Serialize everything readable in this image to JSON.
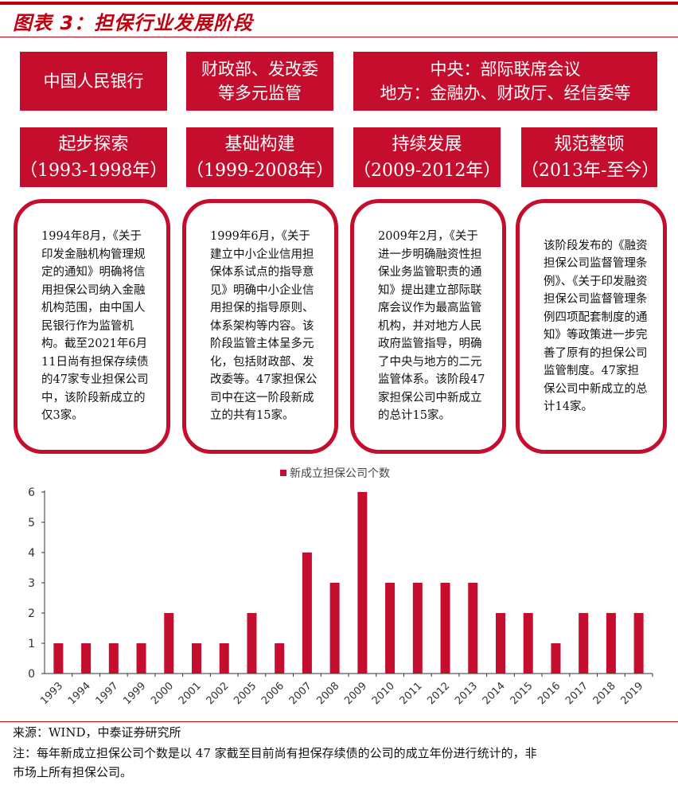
{
  "figure_title": "图表 3：担保行业发展阶段",
  "regulators": [
    {
      "text": "中国人民银行"
    },
    {
      "text": "财政部、发改委\n等多元监管"
    },
    {
      "text": "中央：部际联席会议\n地方：金融办、财政厅、经信委等"
    }
  ],
  "stages": [
    {
      "name": "起步探索",
      "period": "（1993-1998年）",
      "text": "1994年8月，《关于印发金融机构管理规定的通知》明确将信用担保公司纳入金融机构范围，由中国人民银行作为监管机构。截至2021年6月11日尚有担保存续债的47家专业担保公司中，该阶段新成立的仅3家。"
    },
    {
      "name": "基础构建",
      "period": "（1999-2008年）",
      "text": "1999年6月，《关于建立中小企业信用担保体系试点的指导意见》明确中小企业信用担保的指导原则、体系架构等内容。该阶段监管主体呈多元化，包括财政部、发改委等。47家担保公司中在这一阶段新成立的共有15家。"
    },
    {
      "name": "持续发展",
      "period": "（2009-2012年）",
      "text": "2009年2月，《关于进一步明确融资性担保业务监管职责的通知》提出建立部际联席会议作为最高监管机构，并对地方人民政府监管指导，明确了中央与地方的二元监管体系。该阶段47家担保公司中新成立的总计15家。"
    },
    {
      "name": "规范整顿",
      "period": "（2013年-至今）",
      "text": "该阶段发布的《融资担保公司监督管理条例》、《关于印发融资担保公司监督管理条例四项配套制度的通知》等政策进一步完善了原有的担保公司监管制度。47家担保公司中新成立的总计14家。"
    }
  ],
  "chart_data": {
    "type": "bar",
    "legend_position": "top-center",
    "series": [
      {
        "name": "新成立担保公司个数",
        "color": "#c50e2e",
        "values": [
          1,
          1,
          1,
          1,
          2,
          1,
          1,
          2,
          1,
          4,
          3,
          6,
          3,
          3,
          3,
          3,
          2,
          2,
          1,
          2,
          2,
          2
        ]
      }
    ],
    "categories": [
      "1993",
      "1994",
      "1997",
      "1999",
      "2000",
      "2001",
      "2002",
      "2005",
      "2006",
      "2007",
      "2008",
      "2009",
      "2010",
      "2011",
      "2012",
      "2013",
      "2014",
      "2015",
      "2016",
      "2017",
      "2018",
      "2019"
    ],
    "ylim": [
      0,
      6
    ],
    "yticks": [
      0,
      1,
      2,
      3,
      4,
      5,
      6
    ],
    "grid": false
  },
  "footer": {
    "source": "来源：WIND，中泰证券研究所",
    "note_line1": "注：每年新成立担保公司个数是以 47 家截至目前尚有担保存续债的公司的成立年份进行统计的，非",
    "note_line2": "市场上所有担保公司。"
  },
  "colors": {
    "accent": "#c50e2e",
    "title": "#c0000f"
  }
}
